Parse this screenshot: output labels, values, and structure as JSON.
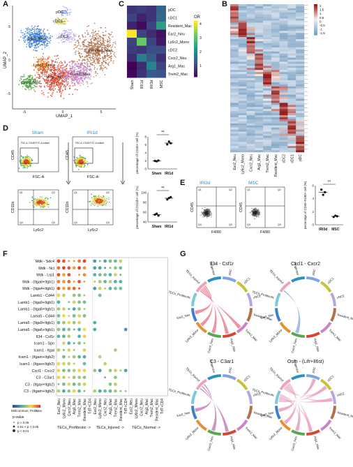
{
  "panel_labels": [
    "A",
    "B",
    "C",
    "D",
    "E",
    "F",
    "G"
  ],
  "panelA": {
    "xlabel": "UMAP_1",
    "ylabel": "UMAP_2",
    "xticks": [
      "-5",
      "0",
      "5"
    ],
    "yticks": [
      "5",
      "0",
      "-5"
    ],
    "clusters": [
      {
        "label": "pDC",
        "color": "#7fa1e8"
      },
      {
        "label": "cDC1",
        "color": "#c7c236"
      },
      {
        "label": "cDC2",
        "color": "#b5a8e2"
      },
      {
        "label": "Ear2_Neu",
        "color": "#3f7fd0"
      },
      {
        "label": "Resident_Mac",
        "color": "#b0724a"
      },
      {
        "label": "Ly6c2_Mono",
        "color": "#e8902f"
      },
      {
        "label": "Cxcr2_Neu",
        "color": "#59a84f"
      },
      {
        "label": "Arg1_Mac",
        "color": "#d6452f"
      },
      {
        "label": "Trem2_Mac",
        "color": "#c685c9"
      }
    ]
  },
  "panelC": {
    "rows": [
      "pDC",
      "cDC1",
      "Resident_Mac",
      "Ear2_Neu",
      "Ly6c2_Mono",
      "cDC2",
      "Cxcr2_Neu",
      "Arg1_Mac",
      "Trem2_Mac"
    ],
    "cols": [
      "Sham",
      "IRI1d",
      "IRI3d",
      "MSC"
    ],
    "values": [
      [
        1.0,
        1.1,
        1.0,
        1.6
      ],
      [
        1.2,
        0.8,
        1.0,
        1.7
      ],
      [
        0.8,
        0.5,
        1.2,
        2.5
      ],
      [
        4.2,
        1.2,
        0.9,
        0.6
      ],
      [
        1.2,
        3.3,
        1.2,
        0.7
      ],
      [
        1.1,
        1.0,
        1.3,
        1.3
      ],
      [
        0.9,
        2.0,
        1.5,
        0.9
      ],
      [
        0.4,
        0.9,
        2.1,
        1.2
      ],
      [
        0.5,
        1.0,
        1.5,
        1.4
      ]
    ],
    "legend_title": "OR",
    "legend_ticks": [
      "4",
      "3",
      "2",
      "1"
    ]
  },
  "panelB": {
    "cols": [
      "Ear2_Neu",
      "Ly6c2_Mono",
      "Cxcr2_Neu",
      "Arg1_Mac",
      "Trem2_Mac",
      "Resident_Mac",
      "cDC2",
      "cDC1",
      "pDC"
    ],
    "legend_ticks": [
      "2",
      "1.5",
      "1",
      "0.5",
      "0",
      "-0.5",
      "-1",
      "-1.5"
    ]
  },
  "panelD": {
    "groups": [
      "Sham",
      "IRI1d"
    ],
    "gate_text": "FSC-A, CD45 FITC-A subset",
    "top_xlabel": "FSC-A",
    "top_ylabel": "CD45",
    "bottom_xlabel": "Ly6c2",
    "bottom_ylabel": "CD11b",
    "quadrants": [
      "Q1",
      "Q2",
      "Q3",
      "Q4"
    ],
    "plot1": {
      "ylabel": "percentage of CD45+ cell (%)",
      "yticks": [
        "8",
        "6",
        "4",
        "2",
        "0"
      ],
      "sig": "**",
      "sham": [
        2.0,
        1.9,
        2.1
      ],
      "iri": [
        6.1,
        6.8,
        6.4
      ]
    },
    "plot2": {
      "ylabel": "percentage of CD11b+ cell (%)",
      "yticks": [
        "100",
        "80",
        "60",
        "40"
      ],
      "sig": "**",
      "sham": [
        55,
        57,
        53
      ],
      "iri": [
        86,
        89,
        91
      ]
    }
  },
  "panelE": {
    "groups": [
      "IRI3d",
      "MSC"
    ],
    "xlabel": "F4/80",
    "ylabel": "CD45",
    "quadrants": [
      "Q1",
      "Q2",
      "Q3",
      "Q4"
    ],
    "plot": {
      "ylabel": "percentage of CD45+F4/80+ cell (%)",
      "yticks": [
        "6",
        "4",
        "2",
        "0"
      ],
      "sig": "**",
      "iri": [
        5.4,
        4.6,
        5.0
      ],
      "msc": [
        1.2,
        1.4,
        1.3
      ]
    }
  },
  "panelF": {
    "pairs": [
      "Mdk - Sdc4",
      "Mdk - Ncl",
      "Mdk - Lrp1",
      "Mdk - (Itga6+Itgb1)",
      "Mdk - (Itga4+Itgb1)",
      "Lamb1 - Cd44",
      "Lamb1 - (Itga9+Itgb1)",
      "Lamb1 - (Itga6+Itgb1)",
      "Lama5 - Cd44",
      "Lama5 - (Itga9+Itgb1)",
      "Lama5 - (Itga6+Itgb1)",
      "Il34 - Csf1r",
      "Icam1 - Spn",
      "Icam1 - Itgal",
      "Icam1 - (Itgam+Itgb2)",
      "Icam1 - (Itgax+Itgb2)",
      "Cxcl1 - Cxcr2",
      "C3 - C3ar1",
      "C3 - (Itgax+Itgb2)",
      "C3 - (Itgam+Itgb2)"
    ],
    "cols": [
      "Ear2_Neu",
      "Ly6c2_Mono",
      "Cxcr2_Neu",
      "Arg1_Mac",
      "Trem2_Mac",
      "Resident_Mac",
      "TdT+CD4",
      "Ear2_Neu",
      "Ly6c2_Mono",
      "Cxcr2_Neu",
      "Arg1_Mac",
      "Trem2_Mac",
      "Resident_Mac",
      "TdT+CD4",
      "Ear2_Neu",
      "Ly6c2_Mono",
      "Cxcr2_Neu",
      "Arg1_Mac",
      "Trem2_Mac",
      "Resident_Mac",
      "TdT+CD4"
    ],
    "groups": [
      "TECs_Profibrotic ->",
      "TECs_Injured ->",
      "TECs_Normal ->"
    ],
    "legend_title": "Commun. Prob.",
    "legend_min": "Min",
    "legend_max": "Max",
    "pval_title": "p-value",
    "pval_items": [
      "p > 0.05",
      "0.01 < p < 0.05",
      "p < 0.01"
    ]
  },
  "panelG": {
    "titles": [
      "Il34 - Csf1r",
      "Cxcl1 - Cxcr2",
      "C3 - C3ar1",
      "Osm - (Lifr+Il6st)"
    ],
    "labels": [
      "pDC",
      "cDC1",
      "cDC2",
      "Resident_Mac",
      "Trem2_Mac",
      "Arg1_Mac",
      "Cxcr2_Neu",
      "Ly6c2_Mono",
      "Ear2_Neu",
      "TECs_Profibrotic",
      "TECs_Injured",
      "Progenitor"
    ]
  }
}
